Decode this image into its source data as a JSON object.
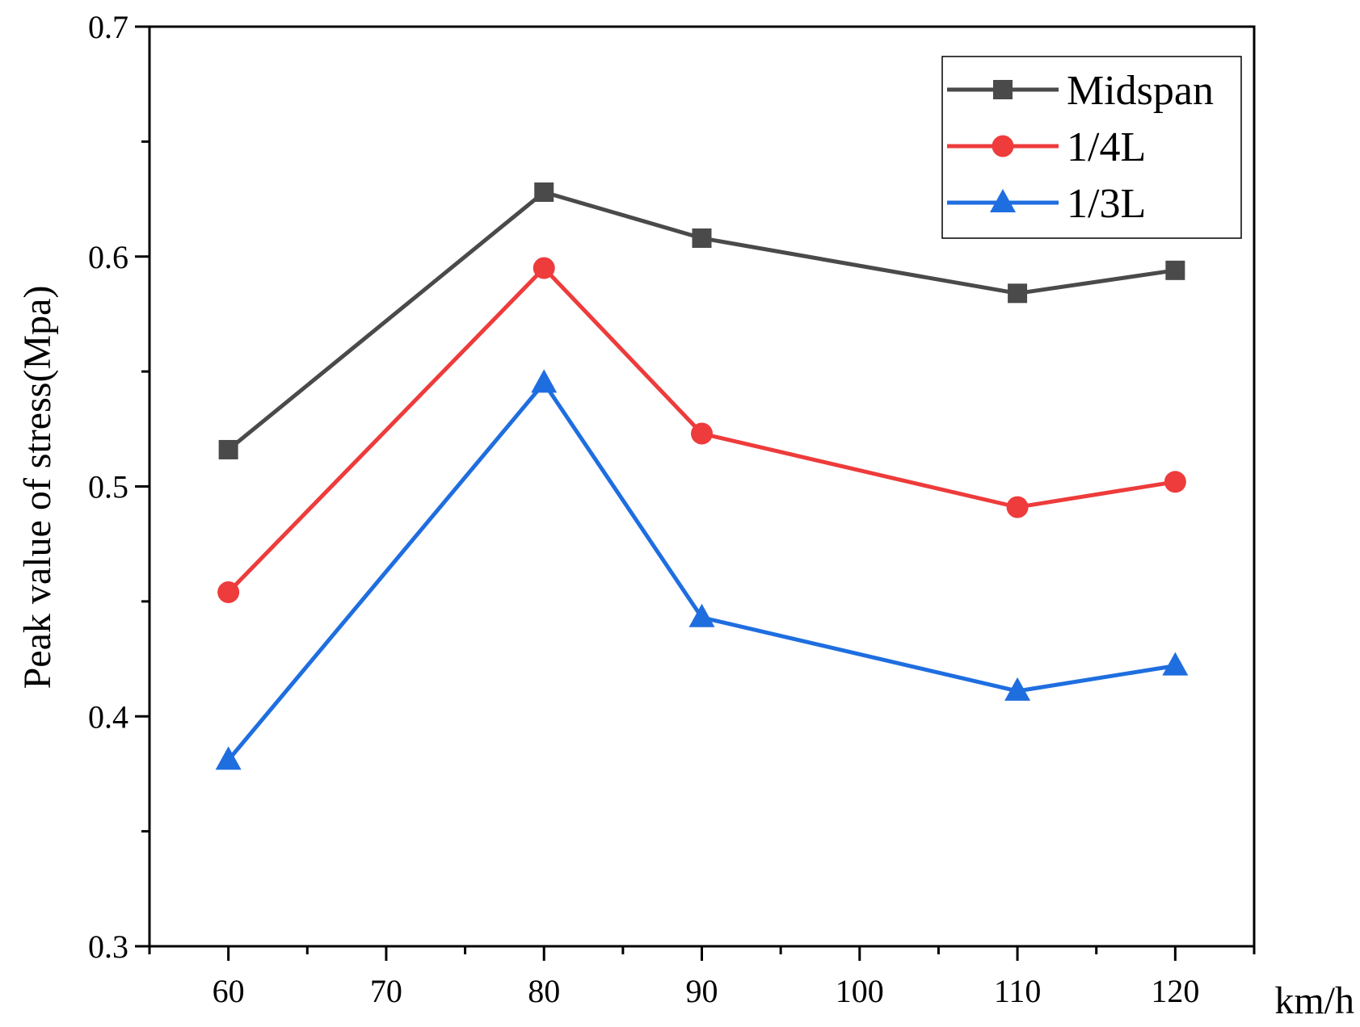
{
  "chart_data": {
    "type": "line",
    "title": "",
    "xlabel": "km/h",
    "ylabel": "Peak value of stress(Mpa)",
    "xlim": [
      55,
      125
    ],
    "ylim": [
      0.3,
      0.7
    ],
    "xticks": [
      60,
      70,
      80,
      90,
      100,
      110,
      120
    ],
    "xtick_labels": [
      "60",
      "70",
      "80",
      "90",
      "100",
      "110",
      "120"
    ],
    "yticks": [
      0.3,
      0.4,
      0.5,
      0.6,
      0.7
    ],
    "ytick_labels": [
      "0.3",
      "0.4",
      "0.5",
      "0.6",
      "0.7"
    ],
    "grid": false,
    "legend_position": "top-right",
    "x": [
      60,
      80,
      90,
      110,
      120
    ],
    "series": [
      {
        "name": "Midspan",
        "color": "#4a4a4a",
        "marker": "square",
        "values": [
          0.516,
          0.628,
          0.608,
          0.584,
          0.594
        ]
      },
      {
        "name": "1/4L",
        "color": "#ee3b3b",
        "marker": "circle",
        "values": [
          0.454,
          0.595,
          0.523,
          0.491,
          0.502
        ]
      },
      {
        "name": "1/3L",
        "color": "#1f6ee0",
        "marker": "triangle",
        "values": [
          0.381,
          0.545,
          0.443,
          0.411,
          0.422
        ]
      }
    ]
  }
}
